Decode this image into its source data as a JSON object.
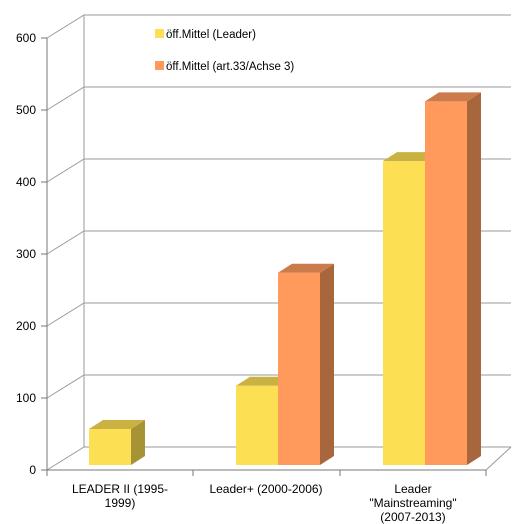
{
  "chart_data": {
    "type": "bar",
    "title": "",
    "xlabel": "",
    "ylabel": "",
    "ylim": [
      0,
      600
    ],
    "yticks": [
      0,
      100,
      200,
      300,
      400,
      500,
      600
    ],
    "grid": true,
    "legend_position": "top-center",
    "categories": [
      [
        "LEADER II (1995-",
        "1999)"
      ],
      [
        "Leader+ (2000-2006)"
      ],
      [
        "Leader",
        "\"Mainstreaming\"",
        "(2007-2013)"
      ]
    ],
    "series": [
      {
        "name": "öff.Mittel (Leader)",
        "values": [
          50,
          110,
          422
        ],
        "color": "#FCDF52"
      },
      {
        "name": "öff.Mittel (art.33/Achse 3)",
        "values": [
          0,
          267,
          505
        ],
        "color": "#FF9A5C"
      }
    ]
  }
}
